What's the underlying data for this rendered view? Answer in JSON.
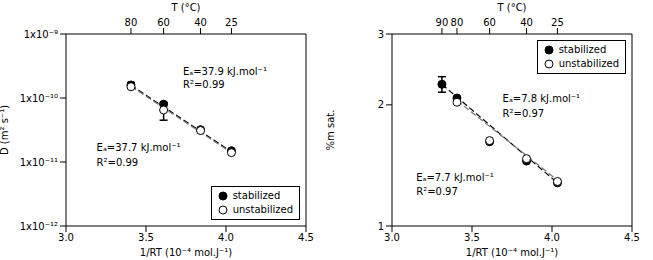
{
  "chart_data": [
    {
      "type": "scatter",
      "log": "y",
      "legend": "lower right",
      "xlabel": "1/RT (10⁻⁴ mol.J⁻¹)",
      "ylabel": "D (m² s⁻¹)",
      "x2label": "T (°C)",
      "xlim": [
        3.0,
        4.5
      ],
      "xticks": [
        {
          "value": 3.0,
          "label": "3.0"
        },
        {
          "value": 3.5,
          "label": "3.5"
        },
        {
          "value": 4.0,
          "label": "4.0"
        },
        {
          "value": 4.5,
          "label": "4.5"
        }
      ],
      "x2ticks": [
        {
          "value": 3.406,
          "label": "80"
        },
        {
          "value": 3.61,
          "label": "60"
        },
        {
          "value": 3.841,
          "label": "40"
        },
        {
          "value": 4.034,
          "label": "25"
        }
      ],
      "ylim": [
        1e-12,
        1e-09
      ],
      "yticks": [
        {
          "value": 1e-12,
          "label": "1x10⁻¹²"
        },
        {
          "value": 1e-11,
          "label": "1x10⁻¹¹"
        },
        {
          "value": 1e-10,
          "label": "1x10⁻¹⁰"
        },
        {
          "value": 1e-09,
          "label": "1x10⁻⁹"
        }
      ],
      "series": [
        {
          "type": "line",
          "line_style": "dashed",
          "color": "#000000",
          "x": [
            3.406,
            4.034
          ],
          "values": [
            1.58e-10,
            1.45e-11
          ]
        },
        {
          "type": "line",
          "line_style": "dashed",
          "color": "#777777",
          "x": [
            3.406,
            4.034
          ],
          "values": [
            1.52e-10,
            1.4e-11
          ]
        },
        {
          "type": "scatter",
          "name": "stabilized",
          "marker": "circle",
          "color": "#000000",
          "x": [
            3.406,
            3.61,
            3.841,
            4.034
          ],
          "values": [
            1.6e-10,
            8e-11,
            3.2e-11,
            1.5e-11
          ],
          "errors": [
            1.5e-11,
            null,
            null,
            null
          ]
        },
        {
          "type": "scatter",
          "name": "unstabilized",
          "marker": "open_circle",
          "color": "#000000",
          "x": [
            3.406,
            3.61,
            3.841,
            4.034
          ],
          "values": [
            1.5e-10,
            6.5e-11,
            3.1e-11,
            1.4e-11
          ],
          "errors": [
            null,
            2e-11,
            null,
            null
          ]
        }
      ],
      "annotations": [
        {
          "text": "Eₐ=37.9 kJ.mol⁻¹",
          "x": 3.7,
          "y": 2.6e-10
        },
        {
          "text": "R²=0.99",
          "x": 3.7,
          "y": 1.65e-10
        },
        {
          "text": "Eₐ=37.7 kJ.mol⁻¹",
          "x": 3.16,
          "y": 1.7e-11
        },
        {
          "text": "R²=0.99",
          "x": 3.16,
          "y": 1e-11
        }
      ]
    },
    {
      "type": "scatter",
      "log": "y",
      "legend": "upper right",
      "xlabel": "1/RT (10⁻⁴ mol.J⁻¹)",
      "ylabel": "%m sat.",
      "x2label": "T (°C)",
      "xlim": [
        3.0,
        4.5
      ],
      "xticks": [
        {
          "value": 3.0,
          "label": "3.0"
        },
        {
          "value": 3.5,
          "label": "3.5"
        },
        {
          "value": 4.0,
          "label": "4.0"
        },
        {
          "value": 4.5,
          "label": "4.5"
        }
      ],
      "x2ticks": [
        {
          "value": 3.312,
          "label": "90"
        },
        {
          "value": 3.406,
          "label": "80"
        },
        {
          "value": 3.61,
          "label": "60"
        },
        {
          "value": 3.841,
          "label": "40"
        },
        {
          "value": 4.034,
          "label": "25"
        }
      ],
      "ylim": [
        1,
        3
      ],
      "yticks": [
        1,
        2,
        3
      ],
      "series": [
        {
          "type": "line",
          "line_style": "dashed",
          "color": "#000000",
          "x": [
            3.312,
            4.034
          ],
          "values": [
            2.25,
            1.28
          ]
        },
        {
          "type": "line",
          "line_style": "dashed",
          "color": "#777777",
          "x": [
            3.406,
            4.034
          ],
          "values": [
            2.05,
            1.3
          ]
        },
        {
          "type": "scatter",
          "name": "stabilized",
          "marker": "circle",
          "color": "#000000",
          "x": [
            3.312,
            3.406,
            3.61,
            3.841,
            4.034
          ],
          "values": [
            2.25,
            2.08,
            1.62,
            1.45,
            1.28
          ],
          "errors": [
            0.1,
            null,
            null,
            null,
            null
          ]
        },
        {
          "type": "scatter",
          "name": "unstabilized",
          "marker": "open_circle",
          "color": "#000000",
          "x": [
            3.406,
            3.61,
            3.841,
            4.034
          ],
          "values": [
            2.03,
            1.63,
            1.47,
            1.29
          ],
          "errors": [
            null,
            null,
            null,
            null
          ]
        }
      ],
      "annotations": [
        {
          "text": "Eₐ=7.8 kJ.mol⁻¹",
          "x": 3.66,
          "y": 2.07
        },
        {
          "text": "R²=0.97",
          "x": 3.66,
          "y": 1.9
        },
        {
          "text": "Eₐ=7.7 kJ.mol⁻¹",
          "x": 3.12,
          "y": 1.32
        },
        {
          "text": "R²=0.97",
          "x": 3.12,
          "y": 1.22
        }
      ]
    }
  ]
}
